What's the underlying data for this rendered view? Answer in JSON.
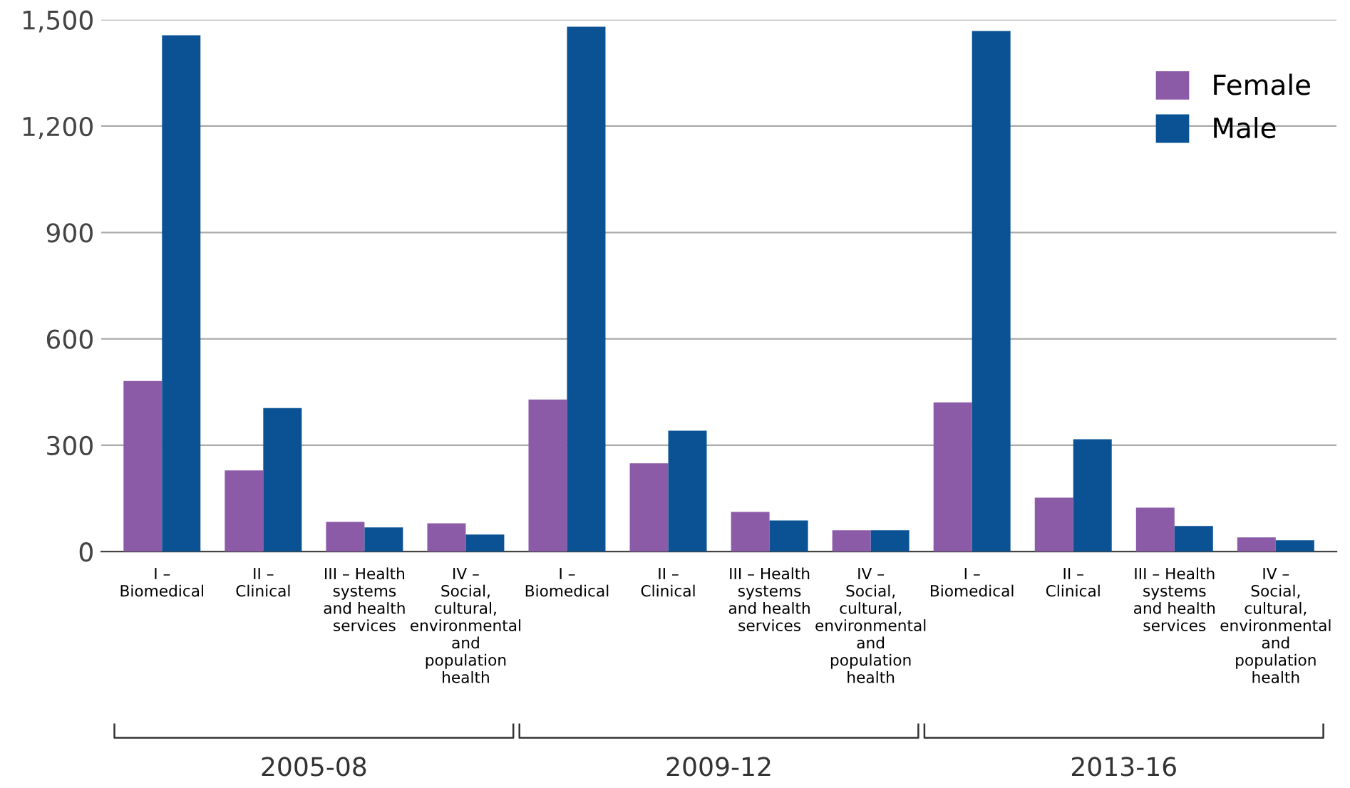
{
  "chart_data": {
    "type": "bar",
    "categories": [
      "I –\nBiomedical",
      "II –\nClinical",
      "III – Health\nsystems\nand health\nservices",
      "IV –\nSocial,\ncultural,\nenvironmental\nand\npopulation\nhealth",
      "I –\nBiomedical",
      "II –\nClinical",
      "III – Health\nsystems\nand health\nservices",
      "IV –\nSocial,\ncultural,\nenvironmental\nand\npopulation\nhealth",
      "I –\nBiomedical",
      "II –\nClinical",
      "III – Health\nsystems\nand health\nservices",
      "IV –\nSocial,\ncultural,\nenvironmental\nand\npopulation\nhealth"
    ],
    "series": [
      {
        "name": "Female",
        "color": "#8c5ba8",
        "values": [
          481,
          229,
          84,
          80,
          429,
          249,
          112,
          60,
          421,
          152,
          124,
          40
        ]
      },
      {
        "name": "Male",
        "color": "#0a5294",
        "values": [
          1456,
          405,
          68,
          48,
          1480,
          341,
          88,
          60,
          1468,
          317,
          72,
          32
        ]
      }
    ],
    "ylim": [
      0,
      1500
    ],
    "yticks": [
      0,
      300,
      600,
      900,
      {
        "value": 1200,
        "label": "1,200"
      },
      {
        "value": 1500,
        "label": "1,500"
      }
    ],
    "grid": "y",
    "legend": "top right",
    "annotations": [
      "2005-08",
      "2009-12",
      "2013-16"
    ]
  }
}
